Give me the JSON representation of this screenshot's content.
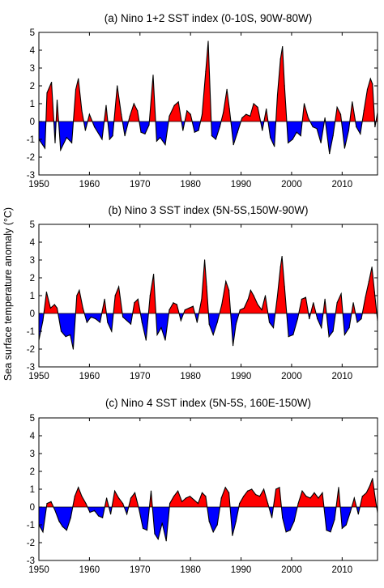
{
  "ylabel": "Sea surface temperature anomaly (°C)",
  "colors": {
    "positive": "#ff0000",
    "negative": "#0000ff",
    "line": "#000000"
  },
  "chart_data": [
    {
      "type": "area",
      "title": "(a) Nino 1+2 SST index (0-10S, 90W-80W)",
      "xlim": [
        1950,
        2017
      ],
      "ylim": [
        -3,
        5
      ],
      "xticks": [
        1950,
        1960,
        1970,
        1980,
        1990,
        2000,
        2010
      ],
      "yticks": [
        -3,
        -2,
        -1,
        0,
        1,
        2,
        3,
        4,
        5
      ],
      "x": [
        1950,
        1951.2,
        1951.6,
        1952.5,
        1953.2,
        1953.6,
        1954.3,
        1955.5,
        1956.5,
        1957.3,
        1957.8,
        1958.5,
        1959.2,
        1960,
        1961,
        1962.5,
        1963.3,
        1964,
        1964.6,
        1965.5,
        1966.3,
        1967,
        1968,
        1968.8,
        1969.5,
        1970.2,
        1971,
        1971.8,
        1972.6,
        1973.3,
        1974,
        1975,
        1975.8,
        1976.8,
        1977.6,
        1978.5,
        1979.3,
        1980,
        1980.8,
        1981.6,
        1982.3,
        1983.0,
        1983.5,
        1984.2,
        1985,
        1985.8,
        1986.5,
        1987.2,
        1987.7,
        1988.5,
        1989.3,
        1990.2,
        1991,
        1991.8,
        1992.5,
        1993.3,
        1994.2,
        1995,
        1995.8,
        1996.6,
        1997.2,
        1997.8,
        1998.2,
        1998.6,
        1999.3,
        2000.2,
        2001,
        2001.8,
        2002.5,
        2003.3,
        2004.2,
        2005,
        2005.8,
        2006.6,
        2007.5,
        2008.2,
        2009,
        2009.7,
        2010.5,
        2011.3,
        2012,
        2012.8,
        2013.6,
        2014.3,
        2015,
        2015.6,
        2016,
        2016.5,
        2017
      ],
      "values": [
        -1.0,
        -1.5,
        1.6,
        2.2,
        -1.2,
        1.2,
        -1.6,
        -0.9,
        -1.2,
        1.8,
        2.4,
        0.6,
        -0.5,
        0.4,
        -0.3,
        -1.0,
        0.9,
        -1.0,
        -0.8,
        2.0,
        0.4,
        -0.8,
        0.3,
        1.0,
        0.6,
        -0.6,
        -0.7,
        -0.2,
        2.6,
        -1.1,
        -0.9,
        -1.3,
        0.3,
        0.9,
        1.1,
        -0.5,
        0.6,
        0.4,
        -0.6,
        -0.5,
        0.4,
        2.8,
        4.5,
        -0.8,
        -1.0,
        -0.3,
        0.5,
        1.8,
        0.7,
        -1.3,
        -0.6,
        0.2,
        0.4,
        0.3,
        1.0,
        0.8,
        -0.5,
        0.7,
        -0.9,
        -1.4,
        1.5,
        3.5,
        4.2,
        2.0,
        -1.2,
        -1.0,
        -0.6,
        -0.8,
        1.0,
        0.2,
        -0.3,
        -0.4,
        -1.2,
        0.2,
        -1.8,
        -0.8,
        0.8,
        0.4,
        -1.5,
        -0.5,
        1.1,
        -0.3,
        -0.7,
        0.6,
        1.8,
        2.4,
        2.1,
        -0.3,
        0.5
      ]
    },
    {
      "type": "area",
      "title": "(b) Nino 3 SST index (5N-5S,150W-90W)",
      "xlim": [
        1950,
        2017
      ],
      "ylim": [
        -3,
        5
      ],
      "xticks": [
        1950,
        1960,
        1970,
        1980,
        1990,
        2000,
        2010
      ],
      "yticks": [
        -3,
        -2,
        -1,
        0,
        1,
        2,
        3,
        4,
        5
      ],
      "x": [
        1950,
        1950.8,
        1951.5,
        1952.3,
        1953.1,
        1953.6,
        1954.4,
        1955.3,
        1956.2,
        1956.8,
        1957.5,
        1958.0,
        1958.7,
        1959.5,
        1960.3,
        1961.2,
        1962.1,
        1963.0,
        1963.6,
        1964.4,
        1965.1,
        1965.8,
        1966.6,
        1967.4,
        1968.2,
        1968.9,
        1969.6,
        1970.4,
        1971.2,
        1972.0,
        1972.7,
        1973.4,
        1974.2,
        1975.0,
        1975.8,
        1976.6,
        1977.3,
        1978.1,
        1978.9,
        1979.7,
        1980.5,
        1981.3,
        1982.2,
        1982.8,
        1983.2,
        1983.7,
        1984.5,
        1985.3,
        1986.2,
        1987.0,
        1987.6,
        1988.4,
        1989.0,
        1989.8,
        1990.6,
        1991.4,
        1991.9,
        1992.5,
        1993.3,
        1994.1,
        1994.8,
        1995.6,
        1996.4,
        1997.2,
        1997.8,
        1998.1,
        1998.6,
        1999.4,
        2000.3,
        2001.2,
        2002.0,
        2002.8,
        2003.5,
        2004.3,
        2005.1,
        2005.9,
        2006.6,
        2007.4,
        2008.2,
        2009.0,
        2009.8,
        2010.5,
        2011.4,
        2012.2,
        2013.0,
        2013.8,
        2014.6,
        2015.3,
        2015.9,
        2016.4,
        2017
      ],
      "values": [
        -1.5,
        -0.4,
        1.2,
        0.3,
        0.5,
        0.3,
        -1.0,
        -1.3,
        -1.2,
        -2.0,
        1.0,
        1.3,
        0.3,
        -0.5,
        -0.2,
        -0.3,
        -0.5,
        0.8,
        -0.5,
        -1.0,
        1.0,
        1.5,
        -0.2,
        -0.4,
        -0.6,
        0.6,
        0.8,
        -0.5,
        -1.5,
        1.0,
        2.2,
        -1.2,
        -0.8,
        -1.5,
        0.2,
        0.6,
        0.5,
        -0.4,
        0.2,
        0.3,
        0.4,
        -0.5,
        0.8,
        3.0,
        1.5,
        -0.6,
        -1.2,
        -0.5,
        0.5,
        1.8,
        1.3,
        -1.8,
        -0.6,
        0.2,
        0.3,
        0.8,
        1.3,
        1.0,
        0.5,
        0.2,
        1.0,
        -0.5,
        -0.8,
        1.0,
        2.6,
        3.2,
        1.5,
        -1.3,
        -1.2,
        -0.3,
        0.8,
        0.9,
        -0.3,
        0.6,
        -0.3,
        -0.8,
        0.8,
        -1.3,
        -1.0,
        0.6,
        1.1,
        -1.2,
        -0.8,
        0.6,
        -0.5,
        -0.3,
        0.9,
        1.8,
        2.6,
        1.2,
        -0.4
      ]
    },
    {
      "type": "area",
      "title": "(c) Nino 4 SST index (5N-5S, 160E-150W)",
      "xlim": [
        1950,
        2017
      ],
      "ylim": [
        -3,
        5
      ],
      "xticks": [
        1950,
        1960,
        1970,
        1980,
        1990,
        2000,
        2010
      ],
      "yticks": [
        -3,
        -2,
        -1,
        0,
        1,
        2,
        3,
        4,
        5
      ],
      "x": [
        1950,
        1950.8,
        1951.6,
        1952.4,
        1953.2,
        1954.0,
        1954.7,
        1955.5,
        1956.3,
        1957.1,
        1957.8,
        1958.5,
        1959.3,
        1960.1,
        1961.0,
        1961.8,
        1962.6,
        1963.4,
        1964.2,
        1965.0,
        1965.8,
        1966.6,
        1967.4,
        1968.2,
        1969.0,
        1969.8,
        1970.6,
        1971.4,
        1972.2,
        1972.9,
        1973.6,
        1974.4,
        1975.2,
        1975.9,
        1976.7,
        1977.5,
        1978.3,
        1979.1,
        1979.9,
        1980.7,
        1981.5,
        1982.3,
        1983.0,
        1983.7,
        1984.5,
        1985.3,
        1986.1,
        1986.9,
        1987.6,
        1988.3,
        1989.0,
        1989.7,
        1990.5,
        1991.3,
        1992.1,
        1992.9,
        1993.7,
        1994.5,
        1995.3,
        1996.1,
        1996.9,
        1997.6,
        1998.2,
        1998.9,
        1999.7,
        2000.5,
        2001.3,
        2002.1,
        2002.9,
        2003.7,
        2004.5,
        2005.3,
        2006.1,
        2006.9,
        2007.7,
        2008.5,
        2009.3,
        2010.0,
        2010.8,
        2011.6,
        2012.4,
        2013.2,
        2014.0,
        2014.8,
        2015.5,
        2016.0,
        2016.6,
        2017
      ],
      "values": [
        -1.0,
        -1.4,
        0.2,
        0.3,
        -0.2,
        -0.8,
        -1.1,
        -1.3,
        -0.6,
        0.6,
        1.1,
        0.6,
        0.2,
        -0.3,
        -0.2,
        -0.5,
        -0.6,
        0.5,
        -0.4,
        0.9,
        0.5,
        0.2,
        -0.4,
        0.5,
        0.8,
        -0.1,
        -1.2,
        -1.3,
        0.9,
        -1.5,
        -1.8,
        -0.9,
        -1.9,
        0.2,
        0.6,
        0.9,
        0.3,
        0.5,
        0.6,
        0.4,
        0.2,
        0.8,
        0.6,
        -0.8,
        -1.4,
        -1.0,
        0.5,
        1.1,
        0.8,
        -1.6,
        -0.8,
        0.2,
        0.6,
        0.9,
        1.0,
        0.7,
        0.6,
        1.0,
        0.2,
        -0.6,
        1.0,
        1.1,
        -0.6,
        -1.4,
        -1.3,
        -0.8,
        0.2,
        0.9,
        0.6,
        0.5,
        0.8,
        0.5,
        0.8,
        -1.3,
        -1.4,
        -0.7,
        1.1,
        -1.2,
        -1.0,
        -0.3,
        0.5,
        -0.4,
        0.6,
        0.8,
        1.2,
        1.6,
        0.4,
        -0.3
      ]
    }
  ]
}
